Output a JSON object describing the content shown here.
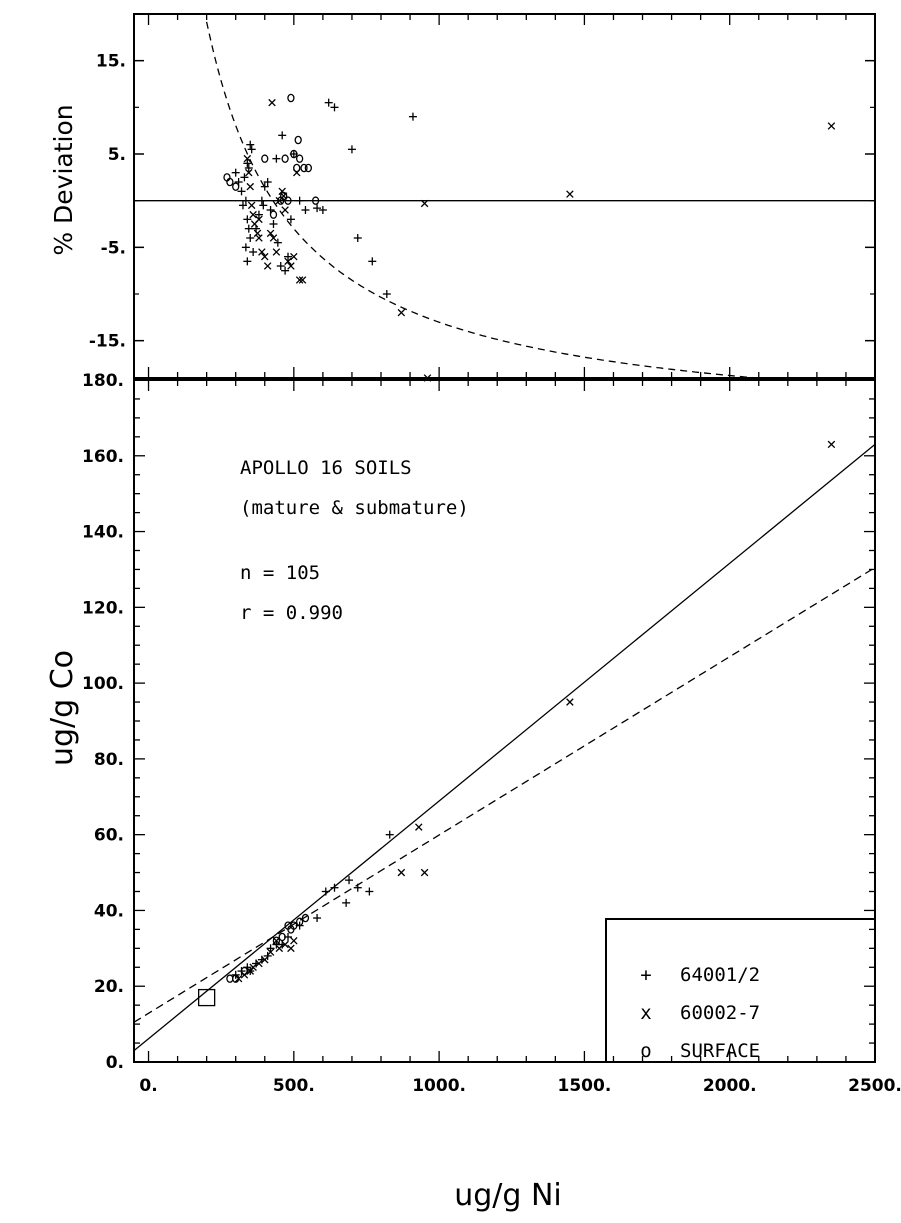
{
  "chart_data": [
    {
      "panel": "top",
      "type": "scatter",
      "ylabel": "% Deviation",
      "xlim": [
        -50,
        2500
      ],
      "ylim": [
        -19,
        20
      ],
      "yticks": [
        "15.",
        "5.",
        "-5.",
        "-15."
      ],
      "reference_line_y": 0,
      "dashed_curve": "hyperbolic boundary (ratio limit)",
      "series": [
        {
          "name": "64001/2",
          "marker": "+",
          "points": [
            [
              300,
              3
            ],
            [
              310,
              2
            ],
            [
              320,
              1
            ],
            [
              330,
              2.5
            ],
            [
              340,
              4
            ],
            [
              350,
              6
            ],
            [
              355,
              5.5
            ],
            [
              345,
              3.5
            ],
            [
              335,
              0
            ],
            [
              325,
              -0.5
            ],
            [
              340,
              -2
            ],
            [
              345,
              -3
            ],
            [
              350,
              -4
            ],
            [
              335,
              -5
            ],
            [
              340,
              -6.5
            ],
            [
              360,
              -5.5
            ],
            [
              370,
              -3
            ],
            [
              380,
              -1.5
            ],
            [
              390,
              0
            ],
            [
              395,
              -0.5
            ],
            [
              400,
              1.5
            ],
            [
              410,
              2
            ],
            [
              420,
              -1
            ],
            [
              430,
              -2.5
            ],
            [
              445,
              -4.5
            ],
            [
              455,
              -7
            ],
            [
              470,
              -7.5
            ],
            [
              480,
              -6
            ],
            [
              490,
              -2
            ],
            [
              440,
              4.5
            ],
            [
              460,
              7
            ],
            [
              500,
              5
            ],
            [
              520,
              0
            ],
            [
              540,
              -1
            ],
            [
              580,
              -0.8
            ],
            [
              600,
              -1
            ],
            [
              620,
              10.5
            ],
            [
              640,
              10
            ],
            [
              700,
              5.5
            ],
            [
              720,
              -4
            ],
            [
              770,
              -6.5
            ],
            [
              820,
              -10
            ],
            [
              910,
              9
            ]
          ]
        },
        {
          "name": "60002-7",
          "marker": "x",
          "points": [
            [
              340,
              4.5
            ],
            [
              345,
              3
            ],
            [
              350,
              1.5
            ],
            [
              355,
              -0.5
            ],
            [
              360,
              -1.5
            ],
            [
              365,
              -2.5
            ],
            [
              375,
              -3.5
            ],
            [
              380,
              -4
            ],
            [
              390,
              -5.5
            ],
            [
              400,
              -6
            ],
            [
              410,
              -7
            ],
            [
              420,
              -3.5
            ],
            [
              430,
              -4
            ],
            [
              440,
              -5.5
            ],
            [
              450,
              0
            ],
            [
              460,
              1
            ],
            [
              470,
              -1
            ],
            [
              480,
              -6.5
            ],
            [
              490,
              -7
            ],
            [
              500,
              -6
            ],
            [
              510,
              3
            ],
            [
              520,
              -8.5
            ],
            [
              530,
              -8.5
            ],
            [
              380,
              -2
            ],
            [
              425,
              10.5
            ],
            [
              465,
              0.5
            ],
            [
              870,
              -12
            ],
            [
              950,
              -0.3
            ],
            [
              960,
              -19
            ],
            [
              1450,
              0.7
            ],
            [
              2350,
              8
            ]
          ]
        },
        {
          "name": "SURFACE",
          "marker": "o",
          "points": [
            [
              270,
              2.5
            ],
            [
              280,
              2
            ],
            [
              300,
              1.5
            ],
            [
              455,
              0
            ],
            [
              465,
              0.5
            ],
            [
              470,
              4.5
            ],
            [
              480,
              0
            ],
            [
              490,
              11
            ],
            [
              500,
              5
            ],
            [
              510,
              3.5
            ],
            [
              515,
              6.5
            ],
            [
              520,
              4.5
            ],
            [
              535,
              3.5
            ],
            [
              550,
              3.5
            ],
            [
              575,
              0
            ],
            [
              400,
              4.5
            ],
            [
              430,
              -1.5
            ]
          ]
        }
      ]
    },
    {
      "panel": "bottom",
      "type": "scatter",
      "title": "APOLLO 16 SOILS",
      "subtitle": "(mature & submature)",
      "n_label": "n = 105",
      "r_label": "r = 0.990",
      "xlabel": "ug/g Ni",
      "ylabel": "ug/g Co",
      "xlim": [
        -50,
        2500
      ],
      "ylim": [
        0,
        180
      ],
      "xticks": [
        "0.",
        "500.",
        "1000.",
        "1500.",
        "2000.",
        "2500."
      ],
      "yticks": [
        "0.",
        "20.",
        "40.",
        "60.",
        "80.",
        "100.",
        "120.",
        "140.",
        "160.",
        "180."
      ],
      "regression_solid": {
        "x": [
          -50,
          2500
        ],
        "y": [
          3,
          163
        ]
      },
      "reference_dashed": {
        "x": [
          -50,
          2500
        ],
        "y": [
          10.5,
          130.5
        ]
      },
      "box_marker": [
        200,
        17
      ],
      "series": [
        {
          "name": "64001/2",
          "marker": "+",
          "points": [
            [
              300,
              23
            ],
            [
              320,
              24
            ],
            [
              340,
              25
            ],
            [
              350,
              24
            ],
            [
              370,
              26
            ],
            [
              390,
              27
            ],
            [
              410,
              28
            ],
            [
              420,
              30
            ],
            [
              440,
              31
            ],
            [
              460,
              31
            ],
            [
              480,
              33
            ],
            [
              520,
              36
            ],
            [
              580,
              38
            ],
            [
              610,
              45
            ],
            [
              640,
              46
            ],
            [
              680,
              42
            ],
            [
              690,
              48
            ],
            [
              720,
              46
            ],
            [
              760,
              45
            ],
            [
              830,
              60
            ]
          ]
        },
        {
          "name": "60002-7",
          "marker": "x",
          "points": [
            [
              310,
              22
            ],
            [
              330,
              23
            ],
            [
              350,
              24
            ],
            [
              360,
              25
            ],
            [
              380,
              26
            ],
            [
              400,
              27
            ],
            [
              420,
              29
            ],
            [
              440,
              32
            ],
            [
              450,
              30
            ],
            [
              470,
              31
            ],
            [
              490,
              30
            ],
            [
              500,
              32
            ],
            [
              870,
              50
            ],
            [
              930,
              62
            ],
            [
              950,
              50
            ],
            [
              1450,
              95
            ],
            [
              2350,
              163
            ]
          ]
        },
        {
          "name": "SURFACE",
          "marker": "o",
          "points": [
            [
              280,
              22
            ],
            [
              300,
              22
            ],
            [
              330,
              24
            ],
            [
              440,
              32
            ],
            [
              460,
              33
            ],
            [
              480,
              36
            ],
            [
              490,
              35
            ],
            [
              500,
              36
            ],
            [
              520,
              37
            ],
            [
              540,
              38
            ]
          ]
        }
      ],
      "legend": {
        "position": "bottom-right",
        "entries": [
          {
            "symbol": "+",
            "label": "64001/2"
          },
          {
            "symbol": "x",
            "label": "60002-7"
          },
          {
            "symbol": "o",
            "label": "SURFACE"
          }
        ]
      }
    }
  ]
}
